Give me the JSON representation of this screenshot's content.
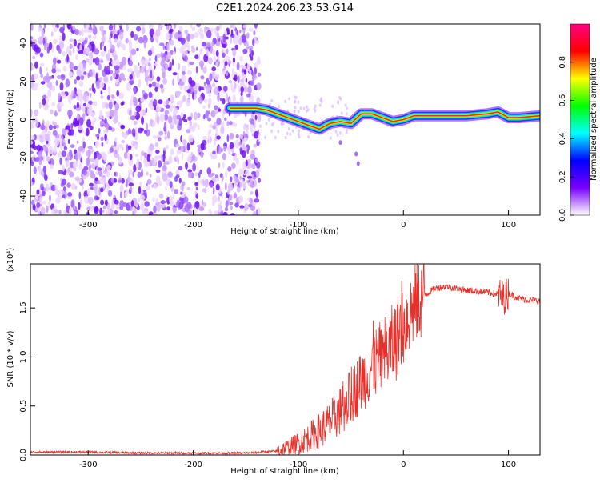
{
  "title": "C2E1.2024.206.23.53.G14",
  "chart_data": [
    {
      "type": "heatmap",
      "xlabel": "Height of straight line (km)",
      "ylabel": "Frequency (Hz)",
      "xlim": [
        -355,
        130
      ],
      "ylim": [
        -50,
        50
      ],
      "xticks": [
        -300,
        -200,
        -100,
        0,
        100
      ],
      "yticks": [
        -40,
        -20,
        0,
        20,
        40
      ],
      "grid": false,
      "noise_region_x": [
        -355,
        -137
      ],
      "tone_track": [
        [
          -165,
          6
        ],
        [
          -150,
          6
        ],
        [
          -140,
          6
        ],
        [
          -130,
          5
        ],
        [
          -120,
          3
        ],
        [
          -110,
          1
        ],
        [
          -100,
          -1
        ],
        [
          -90,
          -3
        ],
        [
          -80,
          -5
        ],
        [
          -70,
          -2
        ],
        [
          -60,
          -1
        ],
        [
          -50,
          -2
        ],
        [
          -40,
          3
        ],
        [
          -30,
          3
        ],
        [
          -20,
          1
        ],
        [
          -10,
          -1
        ],
        [
          0,
          0
        ],
        [
          10,
          2
        ],
        [
          30,
          2
        ],
        [
          60,
          2
        ],
        [
          80,
          3
        ],
        [
          90,
          4
        ],
        [
          100,
          1
        ],
        [
          110,
          1
        ],
        [
          130,
          2
        ]
      ],
      "colorbar": {
        "label": "Normalized spectral amplitude",
        "ticks": [
          "0.0",
          "0.2",
          "0.4",
          "0.6",
          "0.8"
        ],
        "range": [
          0,
          1
        ],
        "colors": [
          "#ffffff",
          "#7a00ff",
          "#0000ff",
          "#00ffff",
          "#00ff00",
          "#ffff00",
          "#ff0000",
          "#ff0080"
        ]
      }
    },
    {
      "type": "line",
      "xlabel": "Height of straight line (km)",
      "ylabel": "SNR (10 * v/v)",
      "yscale_label": "(x10⁴)",
      "xlim": [
        -355,
        130
      ],
      "ylim": [
        0,
        1.95
      ],
      "xticks": [
        -300,
        -200,
        -100,
        0,
        100
      ],
      "yticks": [
        "0.0",
        "0.5",
        "1.0",
        "1.5"
      ],
      "color": "#e8302a",
      "series": [
        {
          "x": [
            -355,
            -300,
            -250,
            -200,
            -150,
            -120,
            -110,
            -100,
            -90,
            -80,
            -70,
            -60,
            -50,
            -40,
            -30,
            -20,
            -10,
            0,
            10,
            20,
            30,
            40,
            50,
            60,
            70,
            80,
            90,
            95,
            100,
            110,
            120,
            130
          ],
          "y": [
            0.03,
            0.03,
            0.02,
            0.02,
            0.02,
            0.04,
            0.08,
            0.12,
            0.18,
            0.25,
            0.33,
            0.45,
            0.6,
            0.75,
            0.9,
            1.0,
            1.12,
            1.32,
            1.52,
            1.63,
            1.7,
            1.72,
            1.7,
            1.68,
            1.67,
            1.66,
            1.64,
            1.6,
            1.65,
            1.6,
            1.58,
            1.57
          ]
        }
      ]
    }
  ]
}
